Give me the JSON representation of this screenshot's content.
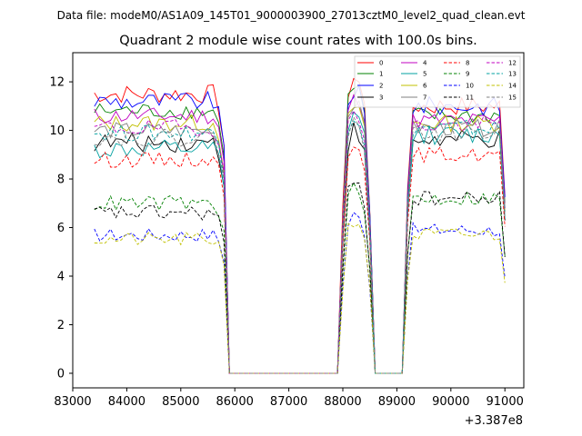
{
  "chart_data": {
    "type": "line",
    "suptitle": "Data file: modeM0/AS1A09_145T01_9000003900_27013cztM0_level2_quad_clean.evt",
    "title": "Quadrant 2 module wise count rates with 100.0s bins.",
    "xlabel": "",
    "ylabel": "",
    "x_offset_label": "+3.387e8",
    "xlim": [
      83000,
      91350
    ],
    "ylim": [
      -0.6,
      13.2
    ],
    "xticks": [
      83000,
      84000,
      85000,
      86000,
      87000,
      88000,
      89000,
      90000,
      91000
    ],
    "xtick_labels": [
      "83000",
      "84000",
      "85000",
      "86000",
      "87000",
      "88000",
      "89000",
      "90000",
      "91000"
    ],
    "yticks": [
      0,
      2,
      4,
      6,
      8,
      10,
      12
    ],
    "ytick_labels": [
      "0",
      "2",
      "4",
      "6",
      "8",
      "10",
      "12"
    ],
    "legend_position": "upper-right",
    "legend_columns": 4,
    "segments": [
      {
        "name": "segment-1",
        "start": 83400,
        "step": 100,
        "count": 25
      },
      {
        "name": "gap-1",
        "start": 85900,
        "step": 100,
        "count": 21
      },
      {
        "name": "segment-2",
        "start": 88000,
        "step": 100,
        "count": 7
      },
      {
        "name": "gap-2",
        "start": 88700,
        "step": 100,
        "count": 5
      },
      {
        "name": "segment-3",
        "start": 89200,
        "step": 100,
        "count": 19
      }
    ],
    "series": [
      {
        "name": "0",
        "color": "#ff0000",
        "dash": "solid",
        "level1": 11.5,
        "level2": 12.2,
        "level3": 11.0,
        "noise": 0.25
      },
      {
        "name": "1",
        "color": "#008000",
        "dash": "solid",
        "level1": 10.8,
        "level2": 11.9,
        "level3": 10.6,
        "noise": 0.22
      },
      {
        "name": "2",
        "color": "#0000ff",
        "dash": "solid",
        "level1": 11.2,
        "level2": 11.7,
        "level3": 11.0,
        "noise": 0.25
      },
      {
        "name": "3",
        "color": "#000000",
        "dash": "solid",
        "level1": 9.5,
        "level2": 10.0,
        "level3": 9.6,
        "noise": 0.25
      },
      {
        "name": "4",
        "color": "#c000c0",
        "dash": "solid",
        "level1": 10.6,
        "level2": 11.3,
        "level3": 10.4,
        "noise": 0.22
      },
      {
        "name": "5",
        "color": "#00a0a0",
        "dash": "solid",
        "level1": 9.2,
        "level2": 10.7,
        "level3": 9.8,
        "noise": 0.25
      },
      {
        "name": "6",
        "color": "#c0c000",
        "dash": "solid",
        "level1": 10.3,
        "level2": 11.0,
        "level3": 10.3,
        "noise": 0.22
      },
      {
        "name": "7",
        "color": "#808080",
        "dash": "solid",
        "level1": 10.0,
        "level2": 11.1,
        "level3": 10.1,
        "noise": 0.22
      },
      {
        "name": "8",
        "color": "#ff0000",
        "dash": "dashed",
        "level1": 8.8,
        "level2": 9.6,
        "level3": 9.0,
        "noise": 0.2
      },
      {
        "name": "9",
        "color": "#008000",
        "dash": "dashed",
        "level1": 7.0,
        "level2": 7.6,
        "level3": 7.2,
        "noise": 0.2
      },
      {
        "name": "10",
        "color": "#0000ff",
        "dash": "dashed",
        "level1": 5.7,
        "level2": 6.5,
        "level3": 5.9,
        "noise": 0.18
      },
      {
        "name": "11",
        "color": "#000000",
        "dash": "dashed",
        "level1": 6.6,
        "level2": 7.8,
        "level3": 7.2,
        "noise": 0.2
      },
      {
        "name": "12",
        "color": "#c000c0",
        "dash": "dashed",
        "level1": 10.1,
        "level2": 10.9,
        "level3": 10.2,
        "noise": 0.22
      },
      {
        "name": "13",
        "color": "#00a0a0",
        "dash": "dashed",
        "level1": 9.9,
        "level2": 10.6,
        "level3": 10.1,
        "noise": 0.22
      },
      {
        "name": "14",
        "color": "#c0c000",
        "dash": "dashed",
        "level1": 5.5,
        "level2": 6.3,
        "level3": 5.7,
        "noise": 0.18
      },
      {
        "name": "15",
        "color": "#808080",
        "dash": "dashed",
        "level1": 9.7,
        "level2": 10.3,
        "level3": 9.9,
        "noise": 0.22
      }
    ]
  }
}
